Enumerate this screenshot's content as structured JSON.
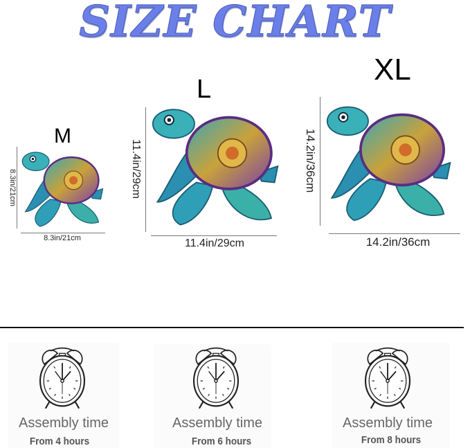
{
  "title": "SIZE CHART",
  "title_color": "#6b7fe8",
  "sizes": [
    {
      "label": "M",
      "height": "8.3in/21cm",
      "width": "8.3in/21cm"
    },
    {
      "label": "L",
      "height": "11.4in/29cm",
      "width": "11.4in/29cm"
    },
    {
      "label": "XL",
      "height": "14.2in/36cm",
      "width": "14.2in/36cm"
    }
  ],
  "assembly": [
    {
      "label": "Assembly time",
      "time": "From 4 hours",
      "icon": "alarm-clock-icon"
    },
    {
      "label": "Assembly time",
      "time": "From 6 hours",
      "icon": "alarm-clock-icon"
    },
    {
      "label": "Assembly time",
      "time": "From 8 hours",
      "icon": "alarm-clock-icon"
    }
  ]
}
